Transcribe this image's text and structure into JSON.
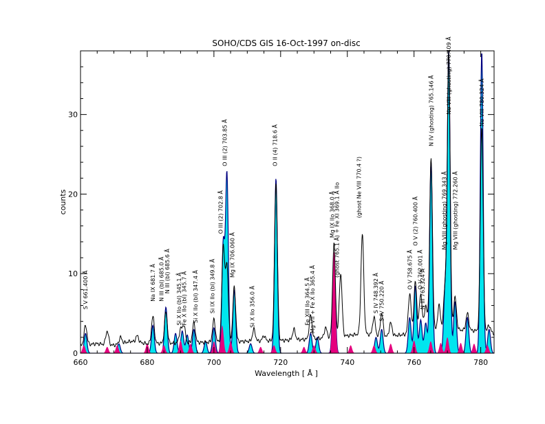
{
  "colors": {
    "background": "#ffffff",
    "axis": "#000000",
    "observed": "#000000",
    "model_total": "#00e5ee",
    "model_outline": "#000080",
    "model_second_order": "#e5007e"
  },
  "chart_data": {
    "type": "line",
    "title": "SOHO/CDS GIS  16-Oct-1997 on-disc",
    "xlabel": "Wavelength [ Å ]",
    "ylabel": "counts",
    "xlim": [
      660,
      784
    ],
    "ylim": [
      0,
      38
    ],
    "xticks": [
      660,
      680,
      700,
      720,
      740,
      760,
      780
    ],
    "yticks": [
      0,
      10,
      20,
      30
    ],
    "grid": false,
    "legend": "none",
    "observed_spectrum": {
      "baseline": [
        [
          660,
          1.0
        ],
        [
          665,
          1.2
        ],
        [
          670,
          1.0
        ],
        [
          675,
          1.5
        ],
        [
          680,
          1.2
        ],
        [
          690,
          1.3
        ],
        [
          700,
          1.4
        ],
        [
          710,
          1.5
        ],
        [
          720,
          1.6
        ],
        [
          730,
          1.8
        ],
        [
          740,
          2.2
        ],
        [
          745,
          2.5
        ],
        [
          750,
          2.0
        ],
        [
          760,
          2.5
        ],
        [
          770,
          3.0
        ],
        [
          780,
          2.8
        ],
        [
          784,
          2.5
        ]
      ],
      "peaks": [
        [
          661.5,
          3.5
        ],
        [
          668.0,
          2.8
        ],
        [
          672.0,
          2.0
        ],
        [
          677.0,
          2.2
        ],
        [
          681.7,
          4.6
        ],
        [
          685.6,
          5.2
        ],
        [
          690.0,
          3.0
        ],
        [
          691.0,
          3.5
        ],
        [
          694.0,
          3.8
        ],
        [
          700.0,
          4.2
        ],
        [
          702.8,
          13.5
        ],
        [
          703.9,
          11.0
        ],
        [
          706.1,
          8.3
        ],
        [
          712.0,
          3.0
        ],
        [
          715.0,
          2.2
        ],
        [
          718.6,
          21.5
        ],
        [
          724.0,
          3.0
        ],
        [
          729.0,
          4.8
        ],
        [
          733.5,
          3.2
        ],
        [
          736.0,
          13.8
        ],
        [
          738.0,
          10.0
        ],
        [
          744.5,
          15.0
        ],
        [
          748.0,
          4.5
        ],
        [
          750.3,
          5.0
        ],
        [
          753.0,
          3.8
        ],
        [
          758.7,
          7.5
        ],
        [
          760.4,
          9.0
        ],
        [
          762.0,
          7.5
        ],
        [
          763.5,
          6.0
        ],
        [
          765.1,
          24.5
        ],
        [
          767.5,
          6.0
        ],
        [
          769.3,
          8.2
        ],
        [
          770.4,
          38.0
        ],
        [
          772.3,
          7.0
        ],
        [
          776.0,
          5.0
        ],
        [
          780.3,
          28.5
        ],
        [
          782.5,
          3.5
        ]
      ]
    },
    "model_total": {
      "peaks": [
        [
          661.5,
          2.5
        ],
        [
          671.5,
          1.2
        ],
        [
          681.7,
          3.5
        ],
        [
          685.6,
          5.8
        ],
        [
          688.5,
          2.5
        ],
        [
          690.5,
          2.8
        ],
        [
          692.0,
          2.3
        ],
        [
          694.0,
          3.0
        ],
        [
          697.5,
          1.5
        ],
        [
          700.0,
          3.2
        ],
        [
          702.8,
          13.8
        ],
        [
          703.9,
          22.5
        ],
        [
          706.1,
          8.0
        ],
        [
          711.0,
          1.2
        ],
        [
          718.6,
          22.0
        ],
        [
          729.0,
          2.5
        ],
        [
          731.0,
          2.0
        ],
        [
          736.0,
          12.0
        ],
        [
          748.6,
          2.0
        ],
        [
          750.3,
          3.0
        ],
        [
          758.7,
          4.5
        ],
        [
          760.4,
          8.5
        ],
        [
          762.0,
          4.2
        ],
        [
          763.5,
          3.8
        ],
        [
          765.1,
          24.0
        ],
        [
          769.3,
          8.0
        ],
        [
          770.4,
          38.0
        ],
        [
          772.3,
          6.5
        ],
        [
          776.0,
          4.5
        ],
        [
          780.3,
          38.0
        ],
        [
          782.5,
          3.0
        ]
      ]
    },
    "model_second_order": {
      "peaks": [
        [
          661.0,
          1.0
        ],
        [
          668.0,
          0.8
        ],
        [
          671.0,
          1.0
        ],
        [
          680.0,
          1.2
        ],
        [
          685.0,
          1.0
        ],
        [
          690.0,
          1.6
        ],
        [
          693.0,
          1.2
        ],
        [
          700.0,
          1.5
        ],
        [
          702.5,
          3.5
        ],
        [
          705.0,
          1.5
        ],
        [
          714.0,
          0.8
        ],
        [
          718.0,
          1.0
        ],
        [
          727.0,
          0.8
        ],
        [
          730.0,
          1.0
        ],
        [
          736.0,
          12.8
        ],
        [
          741.0,
          1.0
        ],
        [
          748.0,
          1.0
        ],
        [
          753.0,
          1.2
        ],
        [
          760.0,
          1.6
        ],
        [
          765.0,
          1.5
        ],
        [
          768.0,
          1.3
        ],
        [
          770.0,
          2.0
        ],
        [
          774.0,
          1.3
        ],
        [
          778.0,
          1.2
        ],
        [
          782.0,
          1.0
        ]
      ]
    },
    "annotations": [
      {
        "text": "S V 661.400 Å",
        "wavelength": 661.4,
        "y": 5.5
      },
      {
        "text": "Na IX  681.7 Å",
        "wavelength": 681.7,
        "y": 6.5
      },
      {
        "text": "N III (bl)  685.0 Å",
        "wavelength": 684.2,
        "y": 6.5
      },
      {
        "text": "N III (bl) 685.6 Å",
        "wavelength": 686.0,
        "y": 7.5
      },
      {
        "text": "Si X IIo (bl) 345.1 Å",
        "wavelength": 689.5,
        "y": 3.5
      },
      {
        "text": "Fe X IIo (bl) 345.7 Å",
        "wavelength": 691.0,
        "y": 3.5
      },
      {
        "text": "Si X IIo (bl) 347.4 Å",
        "wavelength": 694.5,
        "y": 3.8
      },
      {
        "text": "Si IX IIo (bl) 349.8 Å",
        "wavelength": 699.5,
        "y": 5.0
      },
      {
        "text": "O III (2)  702.8 Å",
        "wavelength": 702.0,
        "y": 15.0
      },
      {
        "text": "O III (2)  703.85 Å",
        "wavelength": 703.2,
        "y": 23.5
      },
      {
        "text": "Mg IX  706.060 Å",
        "wavelength": 705.5,
        "y": 9.5
      },
      {
        "text": "Si X IIo 356.0 Å",
        "wavelength": 711.5,
        "y": 3.2
      },
      {
        "text": "O II (4) 718.6 Å",
        "wavelength": 718.3,
        "y": 23.5
      },
      {
        "text": "Fe XIII IIo  364.5 Å",
        "wavelength": 728.0,
        "y": 3.5
      },
      {
        "text": "Mg VII + Fe X IIo 365.4 Å",
        "wavelength": 729.5,
        "y": 2.5
      },
      {
        "text": "Mg IX IIo 368.0 Å",
        "wavelength": 735.4,
        "y": 14.5
      },
      {
        "text": "(ghost 765.1 Å) + Fe XI 369.1 Å IIo",
        "wavelength": 736.9,
        "y": 9.5
      },
      {
        "text": "(ghost Ne VIII 770.4 ?)",
        "wavelength": 743.5,
        "y": 17.0
      },
      {
        "text": "S IV  748.392 Å",
        "wavelength": 748.5,
        "y": 5.0
      },
      {
        "text": "S IV  750.220 Å",
        "wavelength": 750.3,
        "y": 4.0
      },
      {
        "text": "O V  758.675 Å",
        "wavelength": 758.7,
        "y": 8.0
      },
      {
        "text": "O V (2)  760.400 Å",
        "wavelength": 760.4,
        "y": 13.5
      },
      {
        "text": "N III  763.324 Å",
        "wavelength": 762.5,
        "y": 5.5
      },
      {
        "text": "O V  762.001 Å",
        "wavelength": 761.8,
        "y": 8.0
      },
      {
        "text": "N IV (ghosting)  765.146 Å",
        "wavelength": 765.1,
        "y": 26.0
      },
      {
        "text": "Mg VIII (ghosting)  769.343 Å",
        "wavelength": 769.0,
        "y": 13.0
      },
      {
        "text": "Ne VIII (ghosting)  770.409 Å",
        "wavelength": 770.4,
        "y": 30.0
      },
      {
        "text": "Mg VIII (ghosting)  772.260 Å",
        "wavelength": 772.3,
        "y": 13.0
      },
      {
        "text": "Ne VIII  780.324 Å",
        "wavelength": 780.3,
        "y": 28.5
      }
    ]
  }
}
